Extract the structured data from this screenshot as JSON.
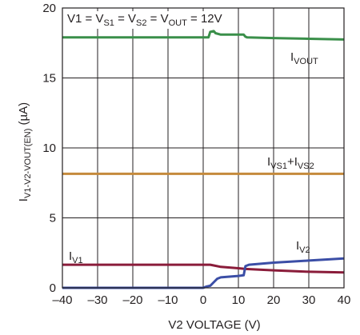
{
  "chart_data": {
    "type": "line",
    "condition": {
      "prefix": "V1 = V",
      "s1_sub": "S1",
      "eq2": " = V",
      "s2_sub": "S2",
      "eq3": " = V",
      "out_sub": "OUT",
      "suffix": " = 12V"
    },
    "xlabel": "V2 VOLTAGE (V)",
    "ylabel": {
      "prefix": "I",
      "sub": "V1-V2-VOUT(EN)",
      "suffix": " (µA)"
    },
    "xlim": [
      -40,
      40
    ],
    "ylim": [
      0,
      20
    ],
    "x_ticks": [
      "–40",
      "–30",
      "–20",
      "–10",
      "0",
      "10",
      "20",
      "30",
      "40"
    ],
    "y_ticks": [
      "0",
      "5",
      "10",
      "15",
      "20"
    ],
    "grid": true,
    "series": [
      {
        "label_main": "I",
        "label_sub": "VOUT",
        "label_extra": "",
        "label_sub2": "",
        "color": "#3a8f4a",
        "x": [
          -40,
          0,
          1.5,
          2,
          3,
          3.5,
          5,
          6,
          10,
          11.5,
          12,
          12.5,
          20,
          30,
          40
        ],
        "y": [
          17.9,
          17.9,
          17.9,
          18.3,
          18.35,
          18.2,
          18.1,
          18.1,
          18.1,
          18.1,
          17.95,
          17.9,
          17.85,
          17.8,
          17.75
        ]
      },
      {
        "label_main": "I",
        "label_sub": "VS1",
        "label_extra": "+I",
        "label_sub2": "VS2",
        "color": "#c58a3c",
        "x": [
          -40,
          40
        ],
        "y": [
          8.15,
          8.15
        ]
      },
      {
        "label_main": "I",
        "label_sub": "V1",
        "label_extra": "",
        "label_sub2": "",
        "color": "#8a1c3a",
        "x": [
          -40,
          0,
          2,
          3,
          5,
          10,
          12,
          20,
          30,
          40
        ],
        "y": [
          1.65,
          1.65,
          1.65,
          1.6,
          1.5,
          1.4,
          1.35,
          1.25,
          1.15,
          1.1
        ]
      },
      {
        "label_main": "I",
        "label_sub": "V2",
        "label_extra": "",
        "label_sub2": "",
        "color": "#3b4ea6",
        "x": [
          -40,
          0,
          1,
          2,
          3,
          4,
          5,
          10,
          11.5,
          12,
          13,
          20,
          30,
          40
        ],
        "y": [
          0,
          0,
          0.1,
          0.15,
          0.4,
          0.65,
          0.75,
          0.85,
          0.9,
          1.55,
          1.65,
          1.8,
          1.95,
          2.1
        ]
      }
    ]
  }
}
